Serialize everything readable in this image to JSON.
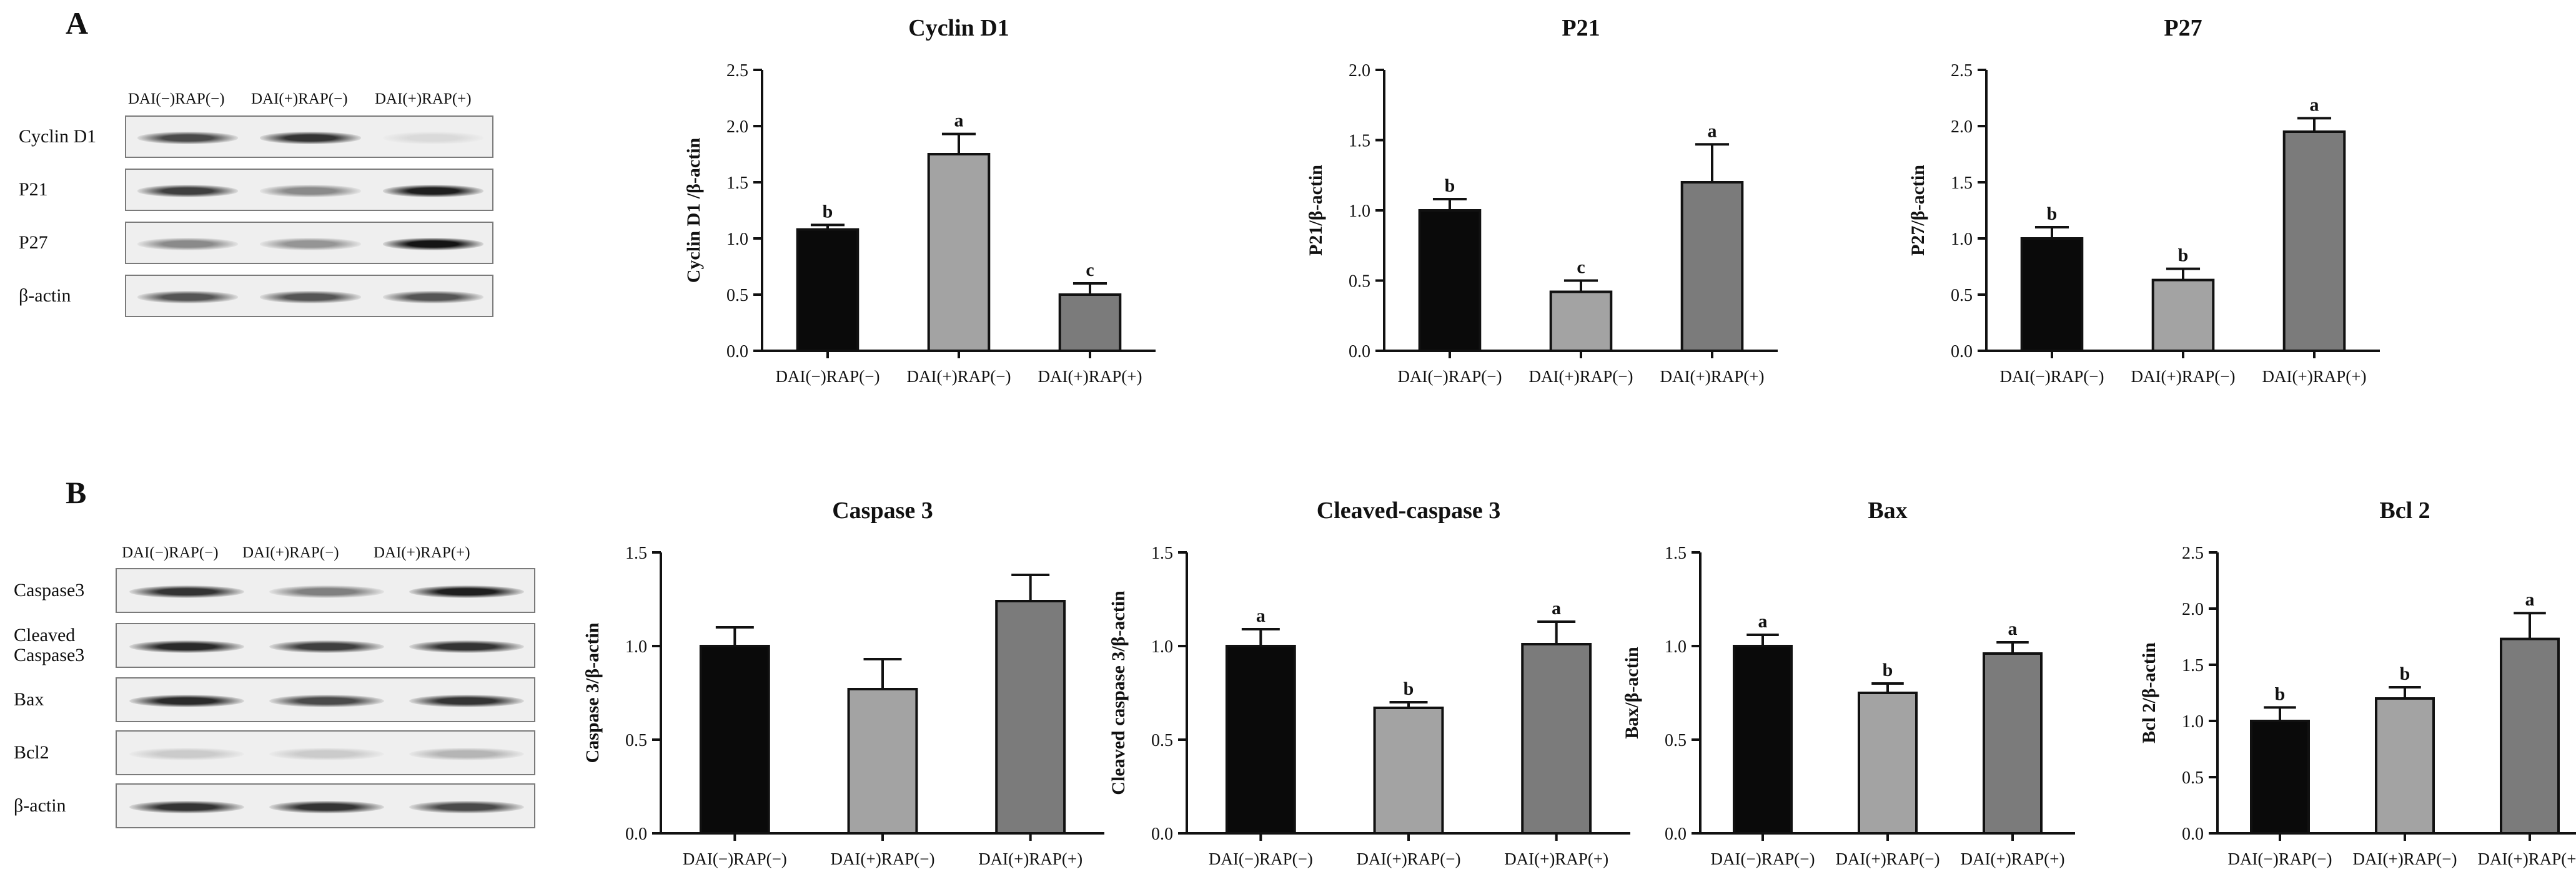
{
  "panels": [
    {
      "letter": "A",
      "lane_headers": [
        "DAI(−)RAP(−)",
        "DAI(+)RAP(−)",
        "DAI(+)RAP(+)"
      ],
      "blots": [
        {
          "label": "Cyclin D1",
          "bands": [
            0.75,
            0.85,
            0.08
          ]
        },
        {
          "label": "P21",
          "bands": [
            0.8,
            0.45,
            0.95
          ]
        },
        {
          "label": "P27",
          "bands": [
            0.45,
            0.4,
            1.0
          ]
        },
        {
          "label": "β-actin",
          "bands": [
            0.7,
            0.7,
            0.7
          ]
        }
      ]
    },
    {
      "letter": "B",
      "lane_headers": [
        "DAI(−)RAP(−)",
        "DAI(+)RAP(−)",
        "DAI(+)RAP(+)"
      ],
      "blots": [
        {
          "label": "Caspase3",
          "bands": [
            0.85,
            0.5,
            0.95
          ]
        },
        {
          "label": "Cleaved\nCaspase3",
          "bands": [
            0.9,
            0.8,
            0.85
          ]
        },
        {
          "label": "Bax",
          "bands": [
            0.9,
            0.75,
            0.85
          ]
        },
        {
          "label": "Bcl2",
          "bands": [
            0.15,
            0.15,
            0.25
          ]
        },
        {
          "label": "β-actin",
          "bands": [
            0.85,
            0.85,
            0.75
          ]
        }
      ]
    }
  ],
  "colors": {
    "bar1": "#0a0a0a",
    "bar2": "#a3a3a3",
    "bar3": "#7b7b7b",
    "axis": "#111111"
  },
  "chart_data": [
    {
      "type": "bar",
      "title": "Cyclin D1",
      "ylabel": "Cyclin D1 /β-actin",
      "categories": [
        "DAI(−)RAP(−)",
        "DAI(+)RAP(−)",
        "DAI(+)RAP(+)"
      ],
      "values": [
        1.08,
        1.75,
        0.5
      ],
      "errors": [
        0.04,
        0.18,
        0.1
      ],
      "sig_labels": [
        "b",
        "a",
        "c"
      ],
      "ylim": [
        0,
        2.5
      ],
      "yticks": [
        "0.0",
        "0.5",
        "1.0",
        "1.5",
        "2.0",
        "2.5"
      ]
    },
    {
      "type": "bar",
      "title": "P21",
      "ylabel": "P21/β-actin",
      "categories": [
        "DAI(−)RAP(−)",
        "DAI(+)RAP(−)",
        "DAI(+)RAP(+)"
      ],
      "values": [
        1.0,
        0.42,
        1.2
      ],
      "errors": [
        0.08,
        0.08,
        0.27
      ],
      "sig_labels": [
        "b",
        "c",
        "a"
      ],
      "ylim": [
        0,
        2.0
      ],
      "yticks": [
        "0.0",
        "0.5",
        "1.0",
        "1.5",
        "2.0"
      ]
    },
    {
      "type": "bar",
      "title": "P27",
      "ylabel": "P27/β-actin",
      "categories": [
        "DAI(−)RAP(−)",
        "DAI(+)RAP(−)",
        "DAI(+)RAP(+)"
      ],
      "values": [
        1.0,
        0.63,
        1.95
      ],
      "errors": [
        0.1,
        0.1,
        0.12
      ],
      "sig_labels": [
        "b",
        "b",
        "a"
      ],
      "ylim": [
        0,
        2.5
      ],
      "yticks": [
        "0.0",
        "0.5",
        "1.0",
        "1.5",
        "2.0",
        "2.5"
      ]
    },
    {
      "type": "bar",
      "title": "Caspase 3",
      "ylabel": "Caspase 3/β-actin",
      "categories": [
        "DAI(−)RAP(−)",
        "DAI(+)RAP(−)",
        "DAI(+)RAP(+)"
      ],
      "values": [
        1.0,
        0.77,
        1.24
      ],
      "errors": [
        0.1,
        0.16,
        0.14
      ],
      "sig_labels": [
        "",
        "",
        ""
      ],
      "ylim": [
        0,
        1.5
      ],
      "yticks": [
        "0.0",
        "0.5",
        "1.0",
        "1.5"
      ]
    },
    {
      "type": "bar",
      "title": "Cleaved-caspase 3",
      "ylabel": "Cleaved caspase 3/β-actin",
      "categories": [
        "DAI(−)RAP(−)",
        "DAI(+)RAP(−)",
        "DAI(+)RAP(+)"
      ],
      "values": [
        1.0,
        0.67,
        1.01
      ],
      "errors": [
        0.09,
        0.03,
        0.12
      ],
      "sig_labels": [
        "a",
        "b",
        "a"
      ],
      "ylim": [
        0,
        1.5
      ],
      "yticks": [
        "0.0",
        "0.5",
        "1.0",
        "1.5"
      ]
    },
    {
      "type": "bar",
      "title": "Bax",
      "ylabel": "Bax/β-actin",
      "categories": [
        "DAI(−)RAP(−)",
        "DAI(+)RAP(−)",
        "DAI(+)RAP(+)"
      ],
      "values": [
        1.0,
        0.75,
        0.96
      ],
      "errors": [
        0.06,
        0.05,
        0.06
      ],
      "sig_labels": [
        "a",
        "b",
        "a"
      ],
      "ylim": [
        0,
        1.5
      ],
      "yticks": [
        "0.0",
        "0.5",
        "1.0",
        "1.5"
      ]
    },
    {
      "type": "bar",
      "title": "Bcl 2",
      "ylabel": "Bcl 2/β-actin",
      "categories": [
        "DAI(−)RAP(−)",
        "DAI(+)RAP(−)",
        "DAI(+)RAP(+)"
      ],
      "values": [
        1.0,
        1.2,
        1.73
      ],
      "errors": [
        0.12,
        0.1,
        0.23
      ],
      "sig_labels": [
        "b",
        "b",
        "a"
      ],
      "ylim": [
        0,
        2.5
      ],
      "yticks": [
        "0.0",
        "0.5",
        "1.0",
        "1.5",
        "2.0",
        "2.5"
      ]
    }
  ]
}
